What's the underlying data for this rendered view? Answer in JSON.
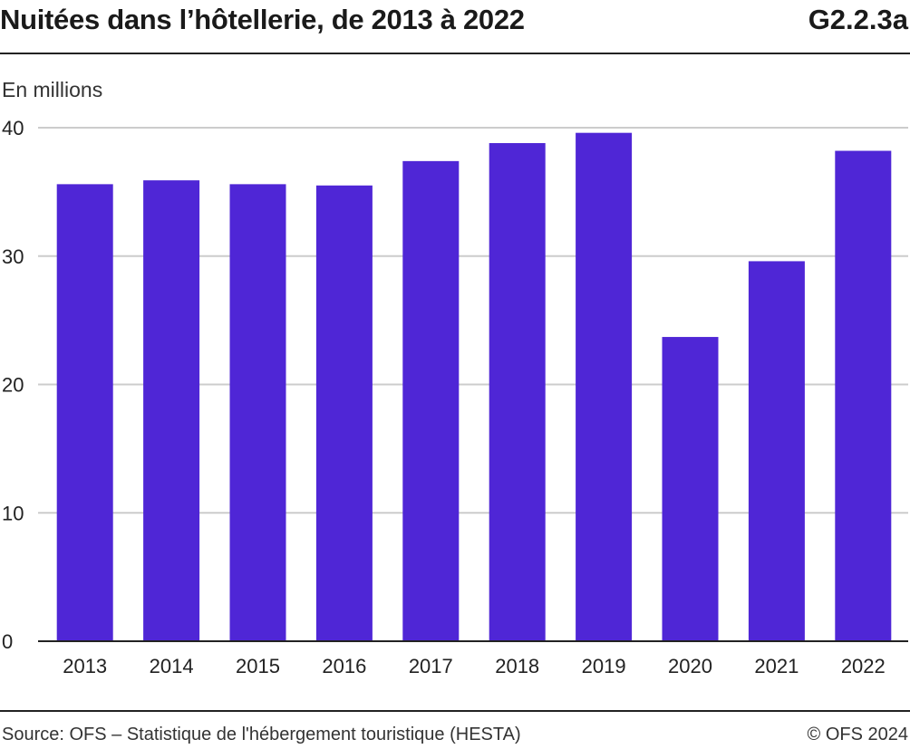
{
  "header": {
    "title": "Nuitées dans l’hôtellerie, de 2013 à 2022",
    "code": "G2.2.3a"
  },
  "footer": {
    "source": "Source: OFS – Statistique de l'hébergement touristique (HESTA)",
    "copyright": "© OFS 2024"
  },
  "colors": {
    "bar": "#4f26d6",
    "grid": "#cccccc",
    "axis": "#222222"
  },
  "chart_data": {
    "type": "bar",
    "title": "Nuitées dans l’hôtellerie, de 2013 à 2022",
    "unit_label": "En millions",
    "categories": [
      "2013",
      "2014",
      "2015",
      "2016",
      "2017",
      "2018",
      "2019",
      "2020",
      "2021",
      "2022"
    ],
    "values": [
      35.6,
      35.9,
      35.6,
      35.5,
      37.4,
      38.8,
      39.6,
      23.7,
      29.6,
      38.2
    ],
    "ylim": [
      0,
      40
    ],
    "yticks": [
      0,
      10,
      20,
      30,
      40
    ],
    "grid": true,
    "legend": "none"
  }
}
